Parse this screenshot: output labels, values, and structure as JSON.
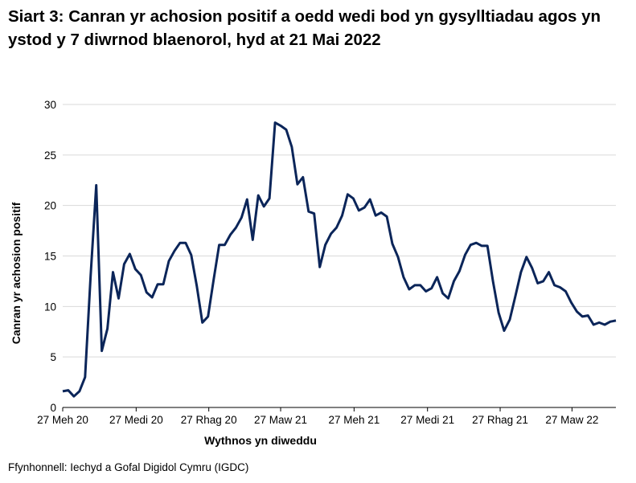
{
  "chart_data": {
    "type": "line",
    "title": "Siart 3: Canran yr achosion positif a oedd wedi bod yn gysylltiadau agos yn ystod y 7 diwrnod blaenorol, hyd at 21 Mai 2022",
    "xlabel": "Wythnos yn diweddu",
    "ylabel": "Canran yr achosion positif",
    "ylim": [
      0,
      30
    ],
    "yticks": [
      0,
      5,
      10,
      15,
      20,
      25,
      30
    ],
    "xticks": [
      {
        "date": "2020-06-27",
        "label": "27 Meh 20"
      },
      {
        "date": "2020-09-27",
        "label": "27 Medi 20"
      },
      {
        "date": "2020-12-27",
        "label": "27 Rhag 20"
      },
      {
        "date": "2021-03-27",
        "label": "27 Maw 21"
      },
      {
        "date": "2021-06-27",
        "label": "27 Meh 21"
      },
      {
        "date": "2021-09-27",
        "label": "27 Medi 21"
      },
      {
        "date": "2021-12-27",
        "label": "27 Rhag 21"
      },
      {
        "date": "2022-03-27",
        "label": "27 Maw 22"
      }
    ],
    "grid": true,
    "line_color": "#0b2559",
    "x": [
      "2020-06-27",
      "2020-07-04",
      "2020-07-11",
      "2020-07-18",
      "2020-07-25",
      "2020-08-01",
      "2020-08-08",
      "2020-08-15",
      "2020-08-22",
      "2020-08-29",
      "2020-09-05",
      "2020-09-12",
      "2020-09-19",
      "2020-09-26",
      "2020-10-03",
      "2020-10-10",
      "2020-10-17",
      "2020-10-24",
      "2020-10-31",
      "2020-11-07",
      "2020-11-14",
      "2020-11-21",
      "2020-11-28",
      "2020-12-05",
      "2020-12-12",
      "2020-12-19",
      "2020-12-26",
      "2021-01-02",
      "2021-01-09",
      "2021-01-16",
      "2021-01-23",
      "2021-01-30",
      "2021-02-06",
      "2021-02-13",
      "2021-02-20",
      "2021-02-27",
      "2021-03-06",
      "2021-03-13",
      "2021-03-20",
      "2021-03-27",
      "2021-04-03",
      "2021-04-10",
      "2021-04-17",
      "2021-04-24",
      "2021-05-01",
      "2021-05-08",
      "2021-05-15",
      "2021-05-22",
      "2021-05-29",
      "2021-06-05",
      "2021-06-12",
      "2021-06-19",
      "2021-06-26",
      "2021-07-03",
      "2021-07-10",
      "2021-07-17",
      "2021-07-24",
      "2021-07-31",
      "2021-08-07",
      "2021-08-14",
      "2021-08-21",
      "2021-08-28",
      "2021-09-04",
      "2021-09-11",
      "2021-09-18",
      "2021-09-25",
      "2021-10-02",
      "2021-10-09",
      "2021-10-16",
      "2021-10-23",
      "2021-10-30",
      "2021-11-06",
      "2021-11-13",
      "2021-11-20",
      "2021-11-27",
      "2021-12-04",
      "2021-12-11",
      "2021-12-18",
      "2021-12-25",
      "2022-01-01",
      "2022-01-08",
      "2022-01-15",
      "2022-01-22",
      "2022-01-29",
      "2022-02-05",
      "2022-02-12",
      "2022-02-19",
      "2022-02-26",
      "2022-03-05",
      "2022-03-12",
      "2022-03-19",
      "2022-03-26",
      "2022-04-02",
      "2022-04-09",
      "2022-04-16",
      "2022-04-23",
      "2022-04-30",
      "2022-05-07",
      "2022-05-14",
      "2022-05-21"
    ],
    "values": [
      1.6,
      1.7,
      1.1,
      1.6,
      3.0,
      13.0,
      22.0,
      5.6,
      7.8,
      13.4,
      10.8,
      14.2,
      15.2,
      13.7,
      13.1,
      11.4,
      10.9,
      12.2,
      12.2,
      14.5,
      15.5,
      16.3,
      16.3,
      15.1,
      12.0,
      8.4,
      9.0,
      12.6,
      16.1,
      16.1,
      17.1,
      17.8,
      18.8,
      20.6,
      16.6,
      21.0,
      19.9,
      20.7,
      28.2,
      27.9,
      27.5,
      25.8,
      22.1,
      22.8,
      19.4,
      19.2,
      13.9,
      16.1,
      17.2,
      17.8,
      19.0,
      21.1,
      20.7,
      19.5,
      19.8,
      20.6,
      19.0,
      19.3,
      18.9,
      16.2,
      14.9,
      12.9,
      11.7,
      12.1,
      12.1,
      11.5,
      11.8,
      12.9,
      11.3,
      10.8,
      12.5,
      13.5,
      15.1,
      16.1,
      16.3,
      16.0,
      16.0,
      12.5,
      9.4,
      7.6,
      8.7,
      11.0,
      13.4,
      14.9,
      13.8,
      12.3,
      12.5,
      13.4,
      12.1,
      11.9,
      11.5,
      10.4,
      9.5,
      9.0,
      9.1,
      8.2,
      8.4,
      8.2,
      8.5,
      8.6
    ]
  },
  "source": "Ffynhonnell: Iechyd a Gofal Digidol Cymru (IGDC)"
}
